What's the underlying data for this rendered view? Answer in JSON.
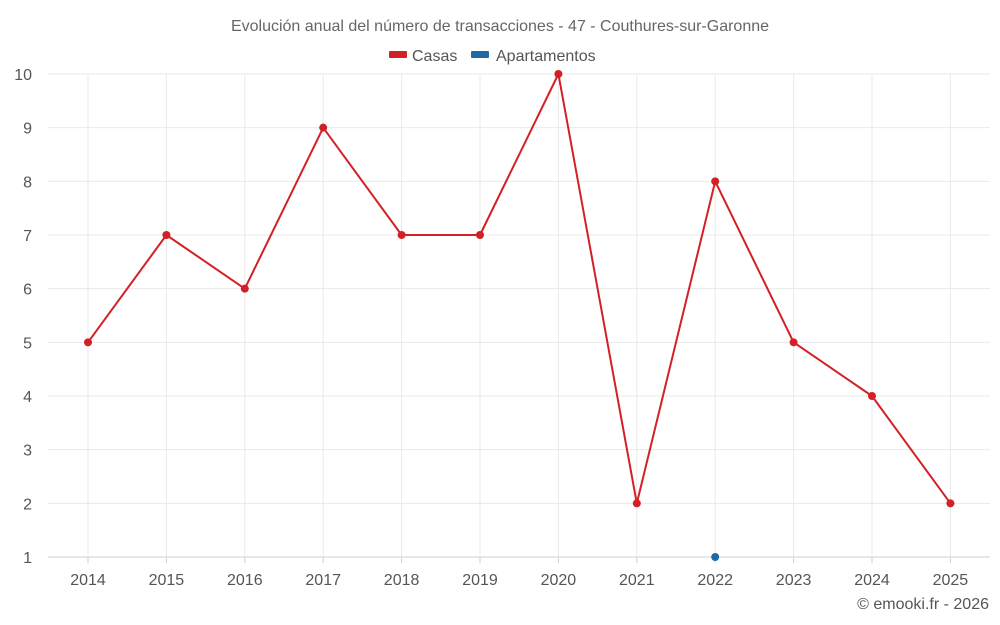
{
  "chart_data": {
    "type": "line",
    "title": "Evolución anual del número de transacciones - 47 - Couthures-sur-Garonne",
    "xlabel": "",
    "ylabel": "",
    "categories": [
      "2014",
      "2015",
      "2016",
      "2017",
      "2018",
      "2019",
      "2020",
      "2021",
      "2022",
      "2023",
      "2024",
      "2025"
    ],
    "ylim": [
      1,
      10
    ],
    "yticks": [
      1,
      2,
      3,
      4,
      5,
      6,
      7,
      8,
      9,
      10
    ],
    "grid": true,
    "legend_position": "top-center",
    "series": [
      {
        "name": "Casas",
        "color": "#d32026",
        "values": [
          5,
          7,
          6,
          9,
          7,
          7,
          10,
          2,
          8,
          5,
          4,
          2
        ]
      },
      {
        "name": "Apartamentos",
        "color": "#1f6aa5",
        "values": [
          null,
          null,
          null,
          null,
          null,
          null,
          null,
          null,
          1,
          null,
          null,
          null
        ]
      }
    ]
  },
  "credit": "© emooki.fr - 2026"
}
